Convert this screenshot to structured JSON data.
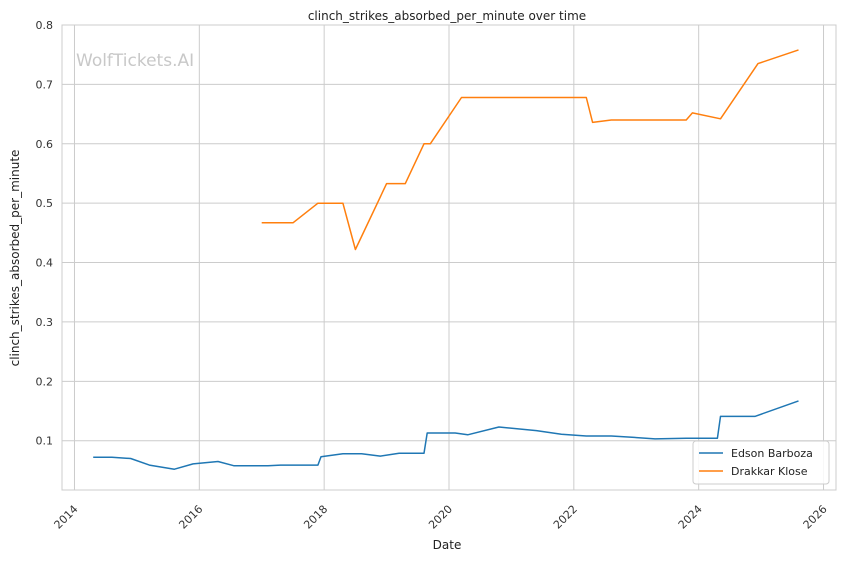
{
  "chart_data": {
    "type": "line",
    "title": "clinch_strikes_absorbed_per_minute over time",
    "xlabel": "Date",
    "ylabel": "clinch_strikes_absorbed_per_minute",
    "watermark": "WolfTickets.AI",
    "xlim": [
      2013.8,
      2026.2
    ],
    "ylim": [
      0.017,
      0.8
    ],
    "x_ticks": [
      2014,
      2016,
      2018,
      2020,
      2022,
      2024,
      2026
    ],
    "y_ticks": [
      0.1,
      0.2,
      0.3,
      0.4,
      0.5,
      0.6,
      0.7,
      0.8
    ],
    "grid": true,
    "legend_position": "lower-right",
    "series": [
      {
        "name": "Edson Barboza",
        "color": "#1f77b4",
        "x": [
          2014.3,
          2014.6,
          2014.9,
          2015.2,
          2015.6,
          2015.9,
          2016.3,
          2016.55,
          2017.1,
          2017.3,
          2017.9,
          2017.95,
          2018.3,
          2018.6,
          2018.9,
          2019.2,
          2019.6,
          2019.65,
          2020.1,
          2020.3,
          2020.8,
          2021.4,
          2021.8,
          2022.2,
          2022.6,
          2022.9,
          2023.3,
          2023.8,
          2024.1,
          2024.3,
          2024.35,
          2024.9,
          2025.6
        ],
        "values": [
          0.072,
          0.072,
          0.07,
          0.059,
          0.052,
          0.061,
          0.065,
          0.058,
          0.058,
          0.059,
          0.059,
          0.073,
          0.078,
          0.078,
          0.074,
          0.079,
          0.079,
          0.113,
          0.113,
          0.11,
          0.123,
          0.117,
          0.111,
          0.108,
          0.108,
          0.106,
          0.103,
          0.104,
          0.104,
          0.104,
          0.141,
          0.141,
          0.167
        ]
      },
      {
        "name": "Drakkar Klose",
        "color": "#ff7f0e",
        "x": [
          2017.0,
          2017.5,
          2017.9,
          2018.3,
          2018.5,
          2019.0,
          2019.3,
          2019.6,
          2019.7,
          2020.2,
          2022.2,
          2022.3,
          2022.6,
          2023.8,
          2023.9,
          2024.35,
          2024.95,
          2025.6
        ],
        "values": [
          0.467,
          0.467,
          0.5,
          0.5,
          0.422,
          0.533,
          0.533,
          0.6,
          0.6,
          0.678,
          0.678,
          0.636,
          0.64,
          0.64,
          0.652,
          0.642,
          0.735,
          0.758
        ]
      }
    ]
  }
}
